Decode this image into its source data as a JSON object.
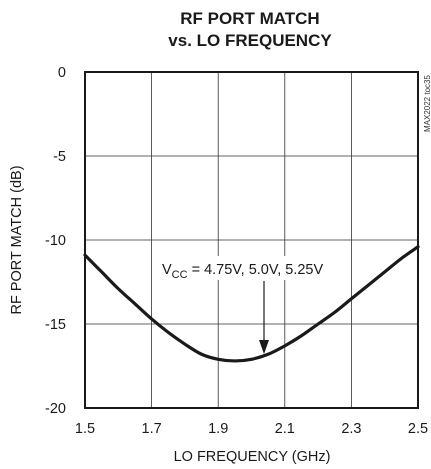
{
  "chart_data": {
    "type": "line",
    "title_line1": "RF PORT MATCH",
    "title_line2": "vs. LO FREQUENCY",
    "xlabel": "LO FREQUENCY (GHz)",
    "ylabel": "RF PORT MATCH (dB)",
    "xlim": [
      1.5,
      2.5
    ],
    "ylim": [
      -20,
      0
    ],
    "x_ticks": [
      "1.5",
      "1.7",
      "1.9",
      "2.1",
      "2.3",
      "2.5"
    ],
    "y_ticks": [
      "0",
      "-5",
      "-10",
      "-15",
      "-20"
    ],
    "grid": true,
    "annotation": {
      "prefix": "V",
      "subscript": "CC",
      "text": " = 4.75V, 5.0V, 5.25V"
    },
    "watermark": "MAX2022 toc35",
    "series": [
      {
        "x": [
          1.5,
          1.55,
          1.6,
          1.65,
          1.7,
          1.75,
          1.8,
          1.85,
          1.9,
          1.95,
          2.0,
          2.05,
          2.1,
          2.15,
          2.2,
          2.25,
          2.3,
          2.35,
          2.4,
          2.45,
          2.5
        ],
        "y": [
          -10.9,
          -11.9,
          -12.9,
          -13.8,
          -14.7,
          -15.5,
          -16.2,
          -16.8,
          -17.1,
          -17.2,
          -17.1,
          -16.8,
          -16.3,
          -15.7,
          -15.0,
          -14.3,
          -13.5,
          -12.7,
          -11.9,
          -11.1,
          -10.4
        ]
      }
    ],
    "colors": {
      "line": "#1a1a1a",
      "grid": "#333333",
      "frame": "#1a1a1a"
    }
  }
}
